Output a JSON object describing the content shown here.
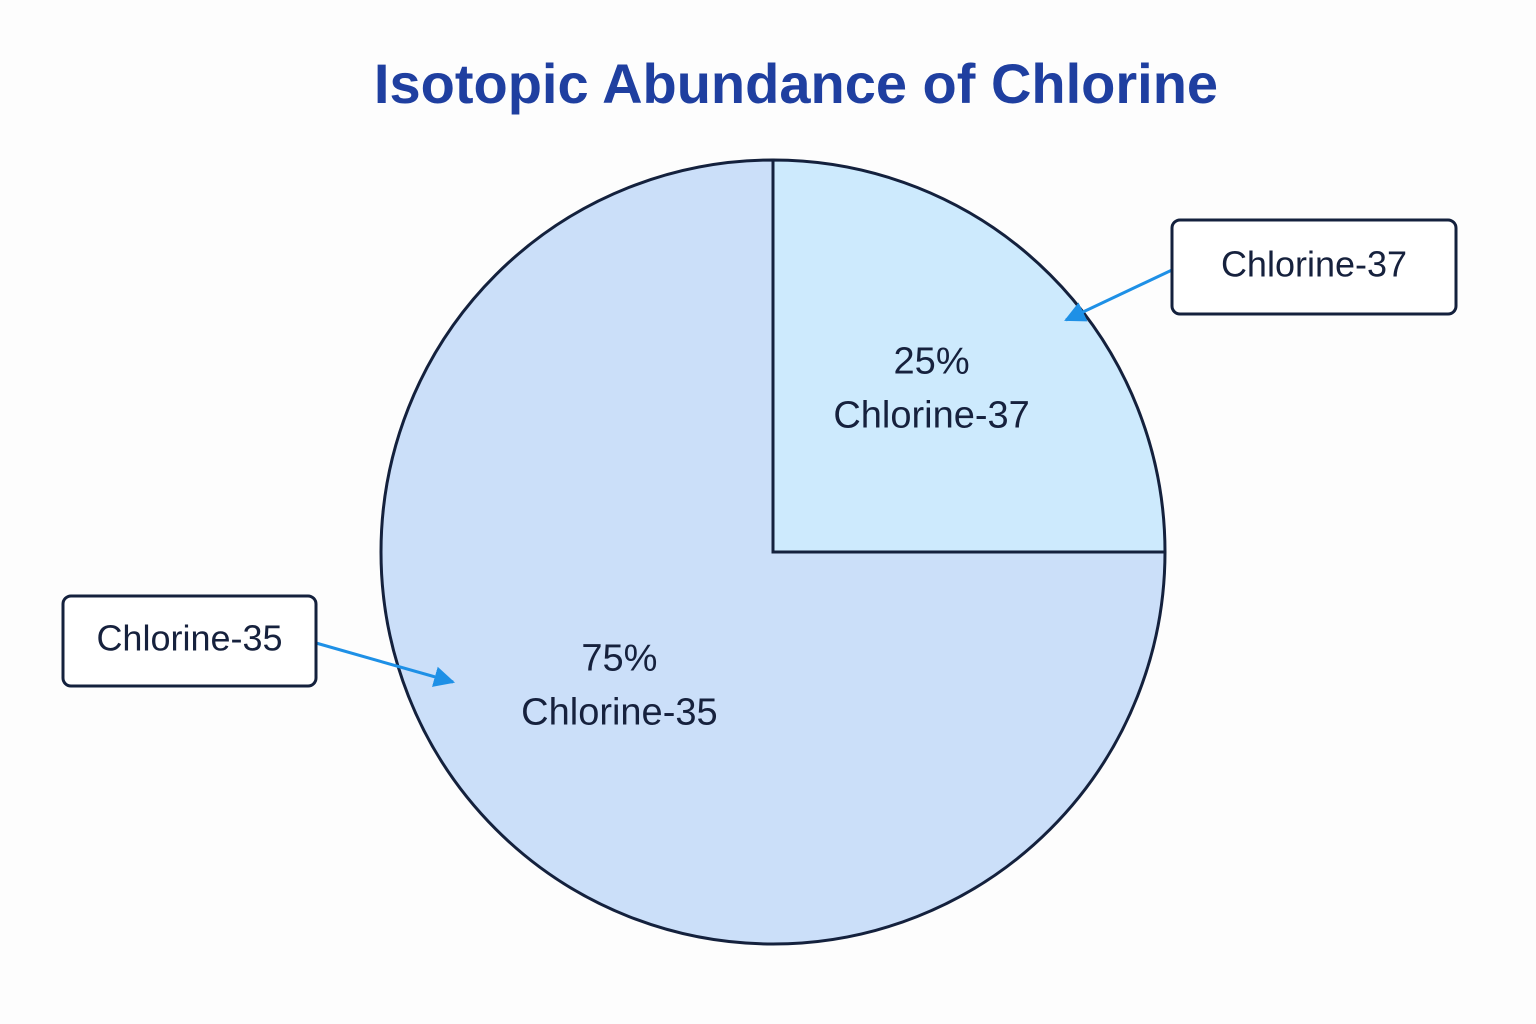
{
  "chart_data": {
    "type": "pie",
    "title": "Isotopic Abundance of Chlorine",
    "categories": [
      "Chlorine-37",
      "Chlorine-35"
    ],
    "values": [
      25,
      75
    ],
    "value_labels": [
      "25%",
      "75%"
    ],
    "colors": [
      "#cdeafd",
      "#cbdff9"
    ]
  }
}
